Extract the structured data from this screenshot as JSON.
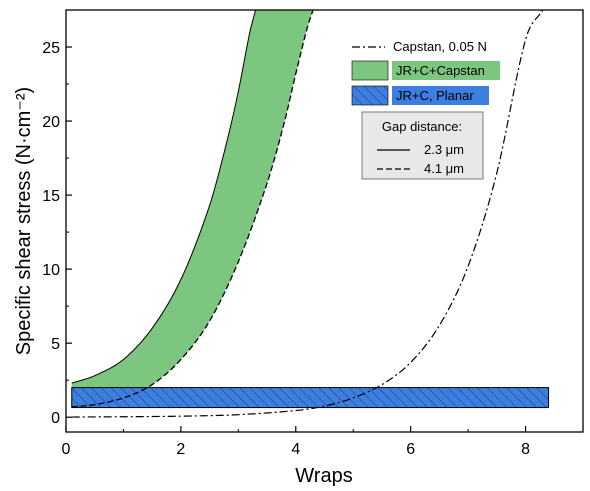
{
  "chart_data": {
    "type": "line",
    "xlabel": "Wraps",
    "ylabel": "Specific shear stress (N·cm⁻²)",
    "xlim": [
      0,
      9
    ],
    "ylim": [
      -1,
      27.5
    ],
    "x_ticks": [
      0,
      2,
      4,
      6,
      8
    ],
    "y_ticks": [
      0,
      5,
      10,
      15,
      20,
      25
    ],
    "grid": false,
    "series": [
      {
        "name": "Capstan, 0.05 N",
        "style": "dash-dot",
        "color": "#000000",
        "x": [
          0.1,
          1,
          2,
          3,
          4,
          4.5,
          5,
          5.5,
          6,
          6.5,
          7,
          7.5,
          8,
          8.3
        ],
        "y": [
          0.01,
          0.03,
          0.07,
          0.17,
          0.45,
          0.75,
          1.3,
          2.2,
          3.7,
          6.2,
          10.2,
          16.5,
          25.5,
          27.5
        ]
      },
      {
        "name": "JR+C+Capstan",
        "type": "band",
        "color": "#7dc67f",
        "upper": {
          "gap": "2.3 μm",
          "x": [
            0.1,
            0.5,
            1.0,
            1.5,
            2.0,
            2.5,
            2.8,
            3.0,
            3.2,
            3.3
          ],
          "y": [
            2.3,
            2.8,
            3.9,
            6.0,
            9.3,
            14.3,
            18.6,
            22.0,
            26.0,
            27.5
          ]
        },
        "lower": {
          "gap": "4.1 μm",
          "x": [
            0.1,
            0.5,
            1.0,
            1.5,
            2.0,
            2.5,
            3.0,
            3.5,
            3.8,
            4.0,
            4.2,
            4.3
          ],
          "y": [
            0.7,
            0.85,
            1.3,
            2.2,
            3.9,
            6.5,
            10.5,
            15.8,
            19.9,
            23.2,
            26.3,
            27.5
          ]
        }
      },
      {
        "name": "JR+C, Planar",
        "type": "band",
        "color": "#3d7fe0",
        "hatched": true,
        "x": [
          0.1,
          8.4
        ],
        "upper": {
          "gap": "2.3 μm",
          "y": [
            2.0,
            2.0
          ]
        },
        "lower": {
          "gap": "4.1 μm",
          "y": [
            0.65,
            0.65
          ]
        }
      }
    ],
    "legend": {
      "placement": "top-right",
      "items": [
        "Capstan, 0.05 N",
        "JR+C+Capstan",
        "JR+C, Planar"
      ],
      "inset_title": "Gap distance:",
      "inset_items": [
        {
          "label": "2.3 μm",
          "style": "solid"
        },
        {
          "label": "4.1 μm",
          "style": "dashed"
        }
      ]
    }
  }
}
